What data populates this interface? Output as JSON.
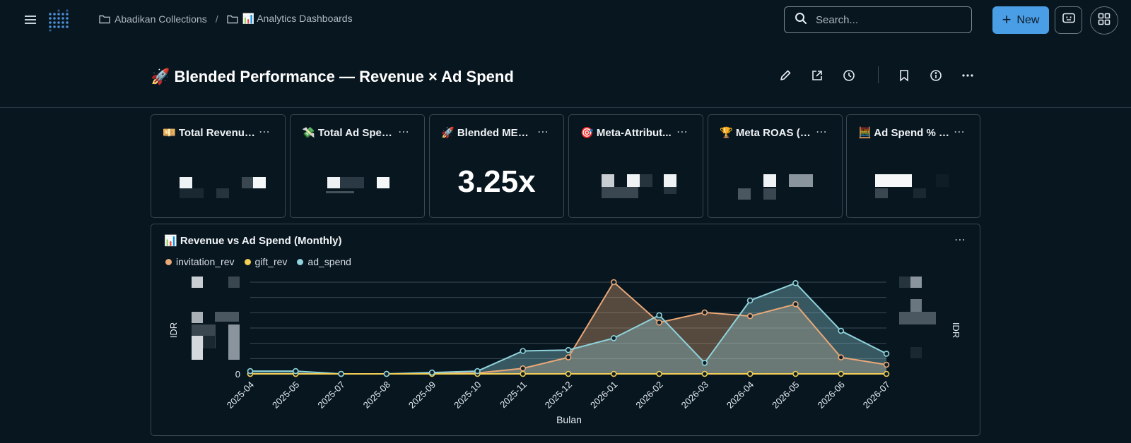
{
  "breadcrumb": {
    "items": [
      {
        "label": "Abadikan Collections"
      },
      {
        "label": "📊 Analytics Dashboards"
      }
    ],
    "separator": "/"
  },
  "search": {
    "placeholder": "Search..."
  },
  "header": {
    "new_label": "New"
  },
  "dashboard": {
    "title": "🚀 Blended Performance — Revenue × Ad Spend"
  },
  "cards": [
    {
      "title": "💴 Total Revenue...",
      "value": null
    },
    {
      "title": "💸 Total Ad Spen...",
      "value": null
    },
    {
      "title": "🚀 Blended MER ...",
      "value": "3.25x"
    },
    {
      "title": "🎯 Meta-Attribut...",
      "value": null
    },
    {
      "title": "🏆 Meta ROAS (9...",
      "value": null
    },
    {
      "title": "🧮 Ad Spend % of...",
      "value": null
    }
  ],
  "card_menu": "⋯",
  "chart": {
    "title": "📊 Revenue vs Ad Spend (Monthly)",
    "menu": "⋯"
  },
  "colors": {
    "invitation_rev": "#e9a878",
    "gift_rev": "#f3cf55",
    "ad_spend": "#8fd3dc",
    "accent": "#4a9ee6"
  },
  "chart_data": {
    "type": "area",
    "title": "📊 Revenue vs Ad Spend (Monthly)",
    "xlabel": "Bulan",
    "ylabel": "IDR",
    "y2label": "IDR",
    "categories": [
      "2025-04",
      "2025-05",
      "2025-07",
      "2025-08",
      "2025-09",
      "2025-10",
      "2025-11",
      "2025-12",
      "2026-01",
      "2026-02",
      "2026-03",
      "2026-04",
      "2026-05",
      "2026-06",
      "2026-07"
    ],
    "y_tick_labels": [
      "0"
    ],
    "series": [
      {
        "name": "invitation_rev",
        "values": [
          0,
          0,
          0,
          0,
          0.5,
          1,
          6,
          18,
          100,
          56,
          67,
          63,
          76,
          18,
          10
        ]
      },
      {
        "name": "gift_rev",
        "values": [
          0,
          0,
          0,
          0,
          0,
          0,
          0,
          0,
          0,
          0,
          0,
          0,
          0,
          0,
          0
        ]
      },
      {
        "name": "ad_spend",
        "values": [
          3,
          3,
          0,
          0,
          1.5,
          3,
          25,
          26,
          39,
          64,
          12,
          80,
          99,
          47,
          22
        ]
      }
    ],
    "ylim": [
      0,
      100
    ],
    "grid": true,
    "legend_position": "top-left"
  }
}
